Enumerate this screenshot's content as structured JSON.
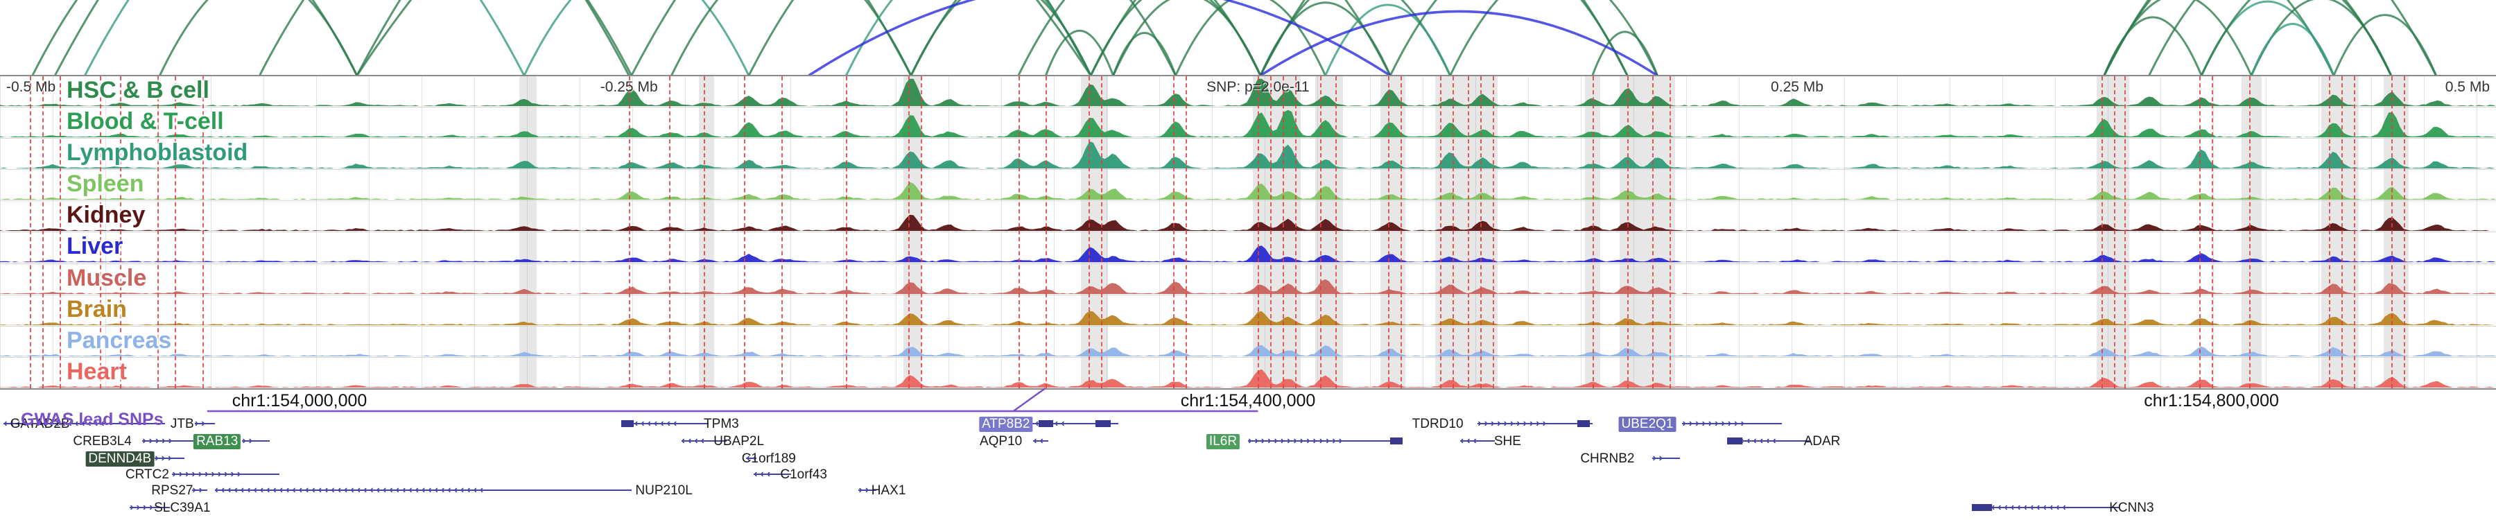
{
  "gwas_label": "GWAS lead SNPs",
  "chart_data": {
    "type": "genome-browser",
    "description_visible_text_only": true,
    "axis_labels": [
      {
        "text": "-0.5 Mb",
        "x_pct": 0.25,
        "align": "left"
      },
      {
        "text": "-0.25 Mb",
        "x_pct": 25.2,
        "align": "center"
      },
      {
        "text": "SNP: p=2.0e-11",
        "x_pct": 50.4,
        "align": "center"
      },
      {
        "text": "0.25 Mb",
        "x_pct": 72.0,
        "align": "center"
      },
      {
        "text": "0.5 Mb",
        "x_pct": 99.75,
        "align": "right"
      }
    ],
    "coordinate_labels": [
      {
        "text": "chr1:154,000,000",
        "x_pct": 12.0
      },
      {
        "text": "chr1:154,400,000",
        "x_pct": 50.0
      },
      {
        "text": "chr1:154,800,000",
        "x_pct": 88.6
      }
    ],
    "tracks": [
      {
        "name": "HSC & B cell",
        "color": "#2f8a4d",
        "amp": 1.0
      },
      {
        "name": "Blood & T-cell",
        "color": "#2e9e54",
        "amp": 0.95
      },
      {
        "name": "Lymphoblastoid",
        "color": "#2f9b78",
        "amp": 0.9
      },
      {
        "name": "Spleen",
        "color": "#7ec460",
        "amp": 0.55
      },
      {
        "name": "Kidney",
        "color": "#5a1515",
        "amp": 0.6
      },
      {
        "name": "Liver",
        "color": "#2a2ad0",
        "amp": 0.45
      },
      {
        "name": "Muscle",
        "color": "#c8635e",
        "amp": 0.55
      },
      {
        "name": "Brain",
        "color": "#bc8420",
        "amp": 0.45
      },
      {
        "name": "Pancreas",
        "color": "#8fb3e8",
        "amp": 0.42
      },
      {
        "name": "Heart",
        "color": "#ea655f",
        "amp": 0.5
      }
    ],
    "peak_clusters": [
      {
        "x": 2.1,
        "h": 0.1
      },
      {
        "x": 4.8,
        "h": 0.08
      },
      {
        "x": 7.2,
        "h": 0.12
      },
      {
        "x": 10.5,
        "h": 0.08
      },
      {
        "x": 14.3,
        "h": 0.12
      },
      {
        "x": 18.0,
        "h": 0.08
      },
      {
        "x": 21.0,
        "h": 0.22
      },
      {
        "x": 25.3,
        "h": 0.45
      },
      {
        "x": 26.9,
        "h": 0.28
      },
      {
        "x": 28.2,
        "h": 0.2
      },
      {
        "x": 30.0,
        "h": 0.42
      },
      {
        "x": 31.4,
        "h": 0.25
      },
      {
        "x": 33.9,
        "h": 0.2
      },
      {
        "x": 36.5,
        "h": 0.85
      },
      {
        "x": 38.0,
        "h": 0.25
      },
      {
        "x": 40.8,
        "h": 0.3
      },
      {
        "x": 41.9,
        "h": 0.25
      },
      {
        "x": 43.7,
        "h": 0.95
      },
      {
        "x": 44.6,
        "h": 0.55
      },
      {
        "x": 47.1,
        "h": 0.7
      },
      {
        "x": 50.5,
        "h": 1.0
      },
      {
        "x": 51.6,
        "h": 0.85
      },
      {
        "x": 53.1,
        "h": 0.7
      },
      {
        "x": 55.7,
        "h": 0.55
      },
      {
        "x": 58.1,
        "h": 0.5
      },
      {
        "x": 59.4,
        "h": 0.4
      },
      {
        "x": 61.0,
        "h": 0.2
      },
      {
        "x": 63.8,
        "h": 0.3
      },
      {
        "x": 65.2,
        "h": 0.5
      },
      {
        "x": 66.4,
        "h": 0.4
      },
      {
        "x": 69.0,
        "h": 0.15
      },
      {
        "x": 71.9,
        "h": 0.18
      },
      {
        "x": 75.0,
        "h": 0.12
      },
      {
        "x": 78.0,
        "h": 0.1
      },
      {
        "x": 80.5,
        "h": 0.1
      },
      {
        "x": 84.3,
        "h": 0.55
      },
      {
        "x": 86.1,
        "h": 0.35
      },
      {
        "x": 88.2,
        "h": 0.6
      },
      {
        "x": 90.2,
        "h": 0.3
      },
      {
        "x": 93.5,
        "h": 0.7
      },
      {
        "x": 95.8,
        "h": 0.8
      },
      {
        "x": 97.6,
        "h": 0.35
      }
    ],
    "arc_colors": {
      "green": "#2e7d4f",
      "teal": "#379e7b",
      "blue": "#2a2ae0"
    },
    "arcs": [
      {
        "x1": 1.3,
        "x2": 14.3,
        "c": "green"
      },
      {
        "x1": 2.2,
        "x2": 25.2,
        "c": "green"
      },
      {
        "x1": 3.4,
        "x2": 21.0,
        "c": "teal"
      },
      {
        "x1": 6.4,
        "x2": 14.3,
        "c": "green"
      },
      {
        "x1": 10.4,
        "x2": 25.3,
        "c": "green"
      },
      {
        "x1": 14.3,
        "x2": 36.5,
        "c": "green"
      },
      {
        "x1": 14.3,
        "x2": 43.7,
        "c": "green"
      },
      {
        "x1": 21.0,
        "x2": 30.0,
        "c": "teal"
      },
      {
        "x1": 25.3,
        "x2": 43.7,
        "c": "green"
      },
      {
        "x1": 26.9,
        "x2": 36.5,
        "c": "green"
      },
      {
        "x1": 30.0,
        "x2": 43.7,
        "c": "green"
      },
      {
        "x1": 33.9,
        "x2": 43.7,
        "c": "teal"
      },
      {
        "x1": 36.5,
        "x2": 47.1,
        "c": "green"
      },
      {
        "x1": 36.5,
        "x2": 43.7,
        "c": "green"
      },
      {
        "x1": 40.8,
        "x2": 50.5,
        "c": "green"
      },
      {
        "x1": 41.9,
        "x2": 44.6,
        "c": "green"
      },
      {
        "x1": 43.7,
        "x2": 50.5,
        "c": "green"
      },
      {
        "x1": 43.7,
        "x2": 55.7,
        "c": "green"
      },
      {
        "x1": 44.6,
        "x2": 47.1,
        "c": "green"
      },
      {
        "x1": 44.6,
        "x2": 50.5,
        "c": "green"
      },
      {
        "x1": 47.1,
        "x2": 53.1,
        "c": "green"
      },
      {
        "x1": 50.5,
        "x2": 55.7,
        "c": "green"
      },
      {
        "x1": 50.5,
        "x2": 58.1,
        "c": "green"
      },
      {
        "x1": 50.5,
        "x2": 65.2,
        "c": "green"
      },
      {
        "x1": 53.1,
        "x2": 58.1,
        "c": "teal"
      },
      {
        "x1": 55.7,
        "x2": 65.2,
        "c": "green"
      },
      {
        "x1": 58.1,
        "x2": 66.4,
        "c": "green"
      },
      {
        "x1": 63.8,
        "x2": 66.4,
        "c": "green"
      },
      {
        "x1": 32.4,
        "x2": 55.7,
        "c": "blue",
        "f": 0.16
      },
      {
        "x1": 50.5,
        "x2": 66.4,
        "c": "blue",
        "f": 0.16
      },
      {
        "x1": 84.3,
        "x2": 88.2,
        "c": "green"
      },
      {
        "x1": 84.3,
        "x2": 93.5,
        "c": "green"
      },
      {
        "x1": 84.3,
        "x2": 97.6,
        "c": "green"
      },
      {
        "x1": 86.1,
        "x2": 95.8,
        "c": "green"
      },
      {
        "x1": 88.2,
        "x2": 93.5,
        "c": "teal"
      },
      {
        "x1": 88.2,
        "x2": 95.8,
        "c": "green"
      },
      {
        "x1": 90.2,
        "x2": 95.8,
        "c": "green"
      },
      {
        "x1": 93.5,
        "x2": 97.6,
        "c": "green"
      },
      {
        "x1": 90.2,
        "x2": 93.5,
        "c": "teal"
      },
      {
        "x1": 84.3,
        "x2": 90.2,
        "c": "green"
      }
    ],
    "snp_lines_pct": [
      1.2,
      1.7,
      2.4,
      4.0,
      4.8,
      6.3,
      7.0,
      8.1,
      25.2,
      26.8,
      28.2,
      29.8,
      31.3,
      33.9,
      36.4,
      36.9,
      40.8,
      41.9,
      43.6,
      44.1,
      47.0,
      47.5,
      50.4,
      50.9,
      51.4,
      51.9,
      52.9,
      53.5,
      55.6,
      56.1,
      57.7,
      58.2,
      58.8,
      59.3,
      59.8,
      63.8,
      65.2,
      66.2,
      66.9,
      84.2,
      84.7,
      85.1,
      88.1,
      88.6,
      90.1,
      93.3,
      93.8,
      94.3,
      95.8,
      96.3
    ],
    "shaded_regions_pct": [
      [
        20.8,
        21.5
      ],
      [
        28.0,
        28.6
      ],
      [
        36.2,
        36.9
      ],
      [
        43.3,
        44.4
      ],
      [
        50.2,
        52.1
      ],
      [
        52.7,
        53.8
      ],
      [
        55.3,
        56.3
      ],
      [
        57.5,
        60.0
      ],
      [
        63.5,
        64.1
      ],
      [
        64.9,
        67.1
      ],
      [
        84.0,
        85.3
      ],
      [
        89.8,
        90.6
      ],
      [
        93.0,
        94.5
      ],
      [
        95.5,
        96.5
      ]
    ],
    "genes": [
      {
        "name": "GATAD2B",
        "row": 1,
        "label_x": 1.6,
        "body": [
          0.15,
          6.6
        ],
        "strand": "<"
      },
      {
        "name": "JTB",
        "row": 1,
        "label_x": 7.3,
        "body": [
          7.8,
          8.6
        ],
        "strand": ">"
      },
      {
        "name": "TPM3",
        "row": 1,
        "label_x": 28.9,
        "body": [
          24.9,
          28.4
        ],
        "strand": "<",
        "exons": [
          [
            24.9,
            25.4
          ]
        ]
      },
      {
        "name": "ATP8B2",
        "row": 1,
        "label_x": 40.3,
        "body": [
          39.4,
          44.8
        ],
        "strand": "<",
        "hl": "#7878cc",
        "exons": [
          [
            41.6,
            42.2
          ],
          [
            43.9,
            44.5
          ]
        ]
      },
      {
        "name": "TDRD10",
        "row": 1,
        "label_x": 57.6,
        "body": [
          59.2,
          63.8
        ],
        "strand": ">",
        "exons": [
          [
            63.2,
            63.7
          ]
        ]
      },
      {
        "name": "UBE2Q1",
        "row": 1,
        "label_x": 66.0,
        "body": [
          67.4,
          71.4
        ],
        "strand": ">",
        "hl": "#7070c2"
      },
      {
        "name": "CREB3L4",
        "row": 2,
        "label_x": 4.1,
        "body": [
          5.7,
          8.0
        ],
        "strand": ">"
      },
      {
        "name": "RAB13",
        "row": 2,
        "label_x": 8.7,
        "body": [
          9.7,
          10.8
        ],
        "strand": ">",
        "hl": "#3f8f4f"
      },
      {
        "name": "UBAP2L",
        "row": 2,
        "label_x": 29.6,
        "body": [
          27.3,
          29.1
        ],
        "strand": "<"
      },
      {
        "name": "AQP10",
        "row": 2,
        "label_x": 40.1,
        "body": [
          41.4,
          42.0
        ],
        "strand": "<"
      },
      {
        "name": "IL6R",
        "row": 2,
        "label_x": 49.0,
        "body": [
          50.0,
          56.2
        ],
        "strand": ">",
        "hl": "#4f9f5f",
        "exons": [
          [
            55.7,
            56.2
          ]
        ]
      },
      {
        "name": "SHE",
        "row": 2,
        "label_x": 60.4,
        "body": [
          58.5,
          59.9
        ],
        "strand": "<"
      },
      {
        "name": "ADAR",
        "row": 2,
        "label_x": 73.0,
        "body": [
          69.2,
          72.5
        ],
        "strand": "<",
        "exons": [
          [
            69.2,
            69.8
          ]
        ]
      },
      {
        "name": "DENND4B",
        "row": 3,
        "label_x": 4.8,
        "body": [
          6.2,
          7.4
        ],
        "strand": ">",
        "hl": "#37503c"
      },
      {
        "name": "C1orf189",
        "row": 3,
        "label_x": 30.8,
        "body": [
          29.9,
          30.3
        ],
        "strand": "<"
      },
      {
        "name": "CHRNB2",
        "row": 3,
        "label_x": 64.4,
        "body": [
          66.2,
          67.3
        ],
        "strand": ">"
      },
      {
        "name": "CRTC2",
        "row": 4,
        "label_x": 5.9,
        "body": [
          6.9,
          11.2
        ],
        "strand": ">"
      },
      {
        "name": "C1orf43",
        "row": 4,
        "label_x": 32.2,
        "body": [
          30.2,
          31.7
        ],
        "strand": "<"
      },
      {
        "name": "RPS27",
        "row": 5,
        "label_x": 6.9,
        "body": [
          7.7,
          8.3
        ],
        "strand": ">"
      },
      {
        "name": "NUP210L",
        "row": 5,
        "label_x": 26.6,
        "body": [
          8.6,
          25.3
        ],
        "strand": "<"
      },
      {
        "name": "HAX1",
        "row": 5,
        "label_x": 35.6,
        "body": [
          34.4,
          35.1
        ],
        "strand": ">"
      },
      {
        "name": "SLC39A1",
        "row": 6,
        "label_x": 7.3,
        "body": [
          5.2,
          6.8
        ],
        "strand": ">"
      },
      {
        "name": "KCNN3",
        "row": 6,
        "label_x": 85.4,
        "body": [
          79.0,
          84.9
        ],
        "strand": "<",
        "exons": [
          [
            79.0,
            79.8
          ]
        ]
      }
    ],
    "gwas_line": {
      "x1_pct": 8.3,
      "x2_pct": 50.4,
      "pointer_x_pct": 40.6,
      "color": "#7a50c8"
    }
  }
}
